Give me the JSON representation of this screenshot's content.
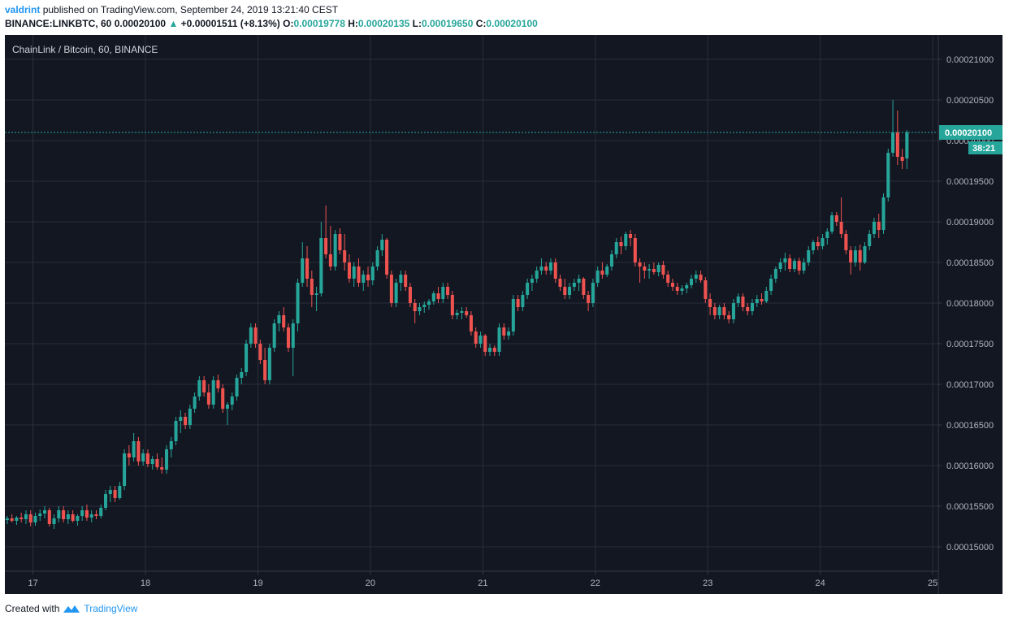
{
  "header": {
    "author": "valdrint",
    "published_text": "published on TradingView.com, September 24, 2019 13:21:40 CEST",
    "symbol": "BINANCE:LINKBTC, 60",
    "last": "0.00020100",
    "change": "+0.00001511 (+8.13%)",
    "o_label": "O:",
    "o_value": "0.00019778",
    "h_label": "H:",
    "h_value": "0.00020135",
    "l_label": "L:",
    "l_value": "0.00019650",
    "c_label": "C:",
    "c_value": "0.00020100"
  },
  "footer": {
    "created_with": "Created with",
    "brand": "TradingView"
  },
  "colors": {
    "up": "#26a69a",
    "down": "#ef5350",
    "background": "#131722",
    "grid": "#2a2e39",
    "price_line": "#26a69a"
  },
  "chart_data": {
    "type": "candlestick",
    "title": "ChainLink / Bitcoin, 60, BINANCE",
    "price_label": "0.00020100",
    "countdown": "38:21",
    "ylim": [
      0.000147,
      0.000213
    ],
    "y_ticks": [
      "0.00021000",
      "0.00020500",
      "0.00020000",
      "0.00019500",
      "0.00019000",
      "0.00018500",
      "0.00018000",
      "0.00017500",
      "0.00017000",
      "0.00016500",
      "0.00016000",
      "0.00015500",
      "0.00015000"
    ],
    "x_ticks": [
      "17",
      "18",
      "19",
      "20",
      "21",
      "22",
      "23",
      "24",
      "25"
    ],
    "x_tick_days": [
      17,
      18,
      19,
      20,
      21,
      22,
      23,
      24,
      25
    ],
    "xlim_days": [
      16.75,
      25.05
    ],
    "grid": true,
    "start_day": 16.75,
    "hours_per_candle": 1,
    "candles": [
      [
        0.0001533,
        0.0001538,
        0.0001528,
        0.0001535
      ],
      [
        0.0001535,
        0.000154,
        0.000153,
        0.0001532
      ],
      [
        0.0001532,
        0.0001538,
        0.0001527,
        0.0001536
      ],
      [
        0.0001536,
        0.0001542,
        0.000153,
        0.0001534
      ],
      [
        0.0001534,
        0.0001545,
        0.0001528,
        0.000154
      ],
      [
        0.000154,
        0.0001545,
        0.0001525,
        0.000153
      ],
      [
        0.000153,
        0.0001542,
        0.0001526,
        0.0001538
      ],
      [
        0.0001538,
        0.0001546,
        0.0001532,
        0.0001541
      ],
      [
        0.0001541,
        0.000155,
        0.0001535,
        0.0001545
      ],
      [
        0.0001545,
        0.0001548,
        0.0001525,
        0.0001528
      ],
      [
        0.0001528,
        0.000154,
        0.0001522,
        0.0001535
      ],
      [
        0.0001535,
        0.000155,
        0.000153,
        0.0001545
      ],
      [
        0.0001545,
        0.000155,
        0.000153,
        0.0001534
      ],
      [
        0.0001534,
        0.0001545,
        0.0001528,
        0.000154
      ],
      [
        0.000154,
        0.0001545,
        0.000153,
        0.0001532
      ],
      [
        0.0001532,
        0.000154,
        0.0001526,
        0.0001538
      ],
      [
        0.0001538,
        0.000155,
        0.0001532,
        0.0001545
      ],
      [
        0.0001545,
        0.0001552,
        0.0001532,
        0.0001536
      ],
      [
        0.0001536,
        0.0001545,
        0.000153,
        0.000154
      ],
      [
        0.000154,
        0.0001545,
        0.0001534,
        0.0001538
      ],
      [
        0.0001538,
        0.0001552,
        0.0001535,
        0.0001548
      ],
      [
        0.0001548,
        0.000157,
        0.0001545,
        0.0001565
      ],
      [
        0.0001565,
        0.0001575,
        0.0001555,
        0.000157
      ],
      [
        0.000157,
        0.0001575,
        0.0001555,
        0.000156
      ],
      [
        0.000156,
        0.000158,
        0.0001558,
        0.0001575
      ],
      [
        0.0001575,
        0.000162,
        0.000157,
        0.0001615
      ],
      [
        0.0001615,
        0.0001625,
        0.00016,
        0.000161
      ],
      [
        0.000161,
        0.000164,
        0.0001605,
        0.000163
      ],
      [
        0.000163,
        0.0001635,
        0.00016,
        0.0001605
      ],
      [
        0.0001605,
        0.000162,
        0.00016,
        0.0001615
      ],
      [
        0.0001615,
        0.000162,
        0.0001598,
        0.0001602
      ],
      [
        0.0001602,
        0.0001612,
        0.0001595,
        0.0001608
      ],
      [
        0.0001608,
        0.0001615,
        0.0001595,
        0.0001598
      ],
      [
        0.0001598,
        0.000161,
        0.000159,
        0.0001595
      ],
      [
        0.0001595,
        0.0001625,
        0.000159,
        0.000162
      ],
      [
        0.000162,
        0.0001635,
        0.000161,
        0.000163
      ],
      [
        0.000163,
        0.000166,
        0.0001625,
        0.0001655
      ],
      [
        0.0001655,
        0.0001668,
        0.000164,
        0.000166
      ],
      [
        0.000166,
        0.0001665,
        0.0001645,
        0.000165
      ],
      [
        0.000165,
        0.0001675,
        0.0001645,
        0.000167
      ],
      [
        0.000167,
        0.000169,
        0.0001665,
        0.0001685
      ],
      [
        0.0001685,
        0.000171,
        0.000168,
        0.0001705
      ],
      [
        0.0001705,
        0.000171,
        0.0001685,
        0.000169
      ],
      [
        0.000169,
        0.00017,
        0.000167,
        0.0001675
      ],
      [
        0.0001675,
        0.000171,
        0.000167,
        0.0001705
      ],
      [
        0.0001705,
        0.0001712,
        0.000169,
        0.0001695
      ],
      [
        0.0001695,
        0.00017,
        0.0001665,
        0.000167
      ],
      [
        0.000167,
        0.0001678,
        0.000165,
        0.0001675
      ],
      [
        0.0001675,
        0.000169,
        0.0001668,
        0.0001685
      ],
      [
        0.0001685,
        0.0001712,
        0.000168,
        0.0001708
      ],
      [
        0.0001708,
        0.000172,
        0.00017,
        0.0001715
      ],
      [
        0.0001715,
        0.0001755,
        0.000171,
        0.000175
      ],
      [
        0.000175,
        0.0001775,
        0.0001745,
        0.000177
      ],
      [
        0.000177,
        0.0001775,
        0.0001745,
        0.000175
      ],
      [
        0.000175,
        0.0001755,
        0.0001725,
        0.000173
      ],
      [
        0.000173,
        0.0001745,
        0.00017,
        0.0001705
      ],
      [
        0.0001705,
        0.000175,
        0.00017,
        0.0001745
      ],
      [
        0.0001745,
        0.000178,
        0.000174,
        0.0001775
      ],
      [
        0.0001775,
        0.000179,
        0.0001765,
        0.0001785
      ],
      [
        0.0001785,
        0.0001795,
        0.0001765,
        0.000177
      ],
      [
        0.000177,
        0.0001775,
        0.000174,
        0.0001745
      ],
      [
        0.0001745,
        0.000178,
        0.000171,
        0.0001775
      ],
      [
        0.0001775,
        0.000183,
        0.0001765,
        0.0001825
      ],
      [
        0.0001825,
        0.0001875,
        0.000182,
        0.0001855
      ],
      [
        0.0001855,
        0.000187,
        0.000182,
        0.000183
      ],
      [
        0.000183,
        0.000184,
        0.0001795,
        0.000181
      ],
      [
        0.000181,
        0.000182,
        0.000179,
        0.0001812
      ],
      [
        0.0001812,
        0.00019,
        0.0001808,
        0.000188
      ],
      [
        0.000188,
        0.000192,
        0.0001855,
        0.000186
      ],
      [
        0.000186,
        0.0001895,
        0.000184,
        0.0001845
      ],
      [
        0.0001845,
        0.000189,
        0.000184,
        0.0001885
      ],
      [
        0.0001885,
        0.0001892,
        0.000186,
        0.0001865
      ],
      [
        0.0001865,
        0.0001885,
        0.000184,
        0.000185
      ],
      [
        0.000185,
        0.000186,
        0.0001825,
        0.000183
      ],
      [
        0.000183,
        0.000185,
        0.000182,
        0.0001845
      ],
      [
        0.0001845,
        0.0001855,
        0.000182,
        0.0001825
      ],
      [
        0.0001825,
        0.000184,
        0.0001815,
        0.0001835
      ],
      [
        0.0001835,
        0.0001845,
        0.000182,
        0.0001828
      ],
      [
        0.0001828,
        0.000185,
        0.0001822,
        0.0001845
      ],
      [
        0.0001845,
        0.000187,
        0.000184,
        0.0001865
      ],
      [
        0.0001865,
        0.0001885,
        0.0001858,
        0.0001878
      ],
      [
        0.0001878,
        0.000188,
        0.000183,
        0.0001835
      ],
      [
        0.0001835,
        0.000184,
        0.0001795,
        0.00018
      ],
      [
        0.00018,
        0.000183,
        0.0001795,
        0.0001825
      ],
      [
        0.0001825,
        0.000184,
        0.0001815,
        0.0001835
      ],
      [
        0.0001835,
        0.000184,
        0.0001815,
        0.000182
      ],
      [
        0.000182,
        0.0001825,
        0.0001795,
        0.00018
      ],
      [
        0.00018,
        0.0001805,
        0.0001775,
        0.000179
      ],
      [
        0.000179,
        0.00018,
        0.0001785,
        0.0001795
      ],
      [
        0.0001795,
        0.0001802,
        0.0001788,
        0.0001798
      ],
      [
        0.0001798,
        0.0001805,
        0.0001792,
        0.0001802
      ],
      [
        0.0001802,
        0.0001815,
        0.0001798,
        0.0001812
      ],
      [
        0.0001812,
        0.000182,
        0.00018,
        0.0001805
      ],
      [
        0.0001805,
        0.0001825,
        0.00018,
        0.000182
      ],
      [
        0.000182,
        0.0001825,
        0.0001805,
        0.000181
      ],
      [
        0.000181,
        0.0001815,
        0.000178,
        0.0001785
      ],
      [
        0.0001785,
        0.0001792,
        0.000178,
        0.0001788
      ],
      [
        0.0001788,
        0.0001795,
        0.000178,
        0.000179
      ],
      [
        0.000179,
        0.0001795,
        0.0001782,
        0.0001785
      ],
      [
        0.0001785,
        0.000179,
        0.000176,
        0.0001765
      ],
      [
        0.0001765,
        0.000177,
        0.0001745,
        0.000175
      ],
      [
        0.000175,
        0.0001765,
        0.0001745,
        0.000176
      ],
      [
        0.000176,
        0.0001762,
        0.0001735,
        0.000174
      ],
      [
        0.000174,
        0.000175,
        0.0001735,
        0.0001745
      ],
      [
        0.0001745,
        0.0001748,
        0.0001735,
        0.000174
      ],
      [
        0.000174,
        0.0001775,
        0.0001735,
        0.000177
      ],
      [
        0.000177,
        0.0001775,
        0.0001755,
        0.000176
      ],
      [
        0.000176,
        0.000177,
        0.0001755,
        0.0001765
      ],
      [
        0.0001765,
        0.000181,
        0.000176,
        0.0001805
      ],
      [
        0.0001805,
        0.000181,
        0.000179,
        0.0001795
      ],
      [
        0.0001795,
        0.0001815,
        0.000179,
        0.000181
      ],
      [
        0.000181,
        0.000183,
        0.0001805,
        0.0001825
      ],
      [
        0.0001825,
        0.0001835,
        0.0001815,
        0.000183
      ],
      [
        0.000183,
        0.0001845,
        0.0001825,
        0.000184
      ],
      [
        0.000184,
        0.0001855,
        0.0001835,
        0.0001845
      ],
      [
        0.0001845,
        0.000185,
        0.0001835,
        0.000184
      ],
      [
        0.000184,
        0.0001855,
        0.0001835,
        0.000185
      ],
      [
        0.000185,
        0.0001855,
        0.0001825,
        0.000183
      ],
      [
        0.000183,
        0.0001835,
        0.0001815,
        0.000182
      ],
      [
        0.000182,
        0.000183,
        0.0001805,
        0.000181
      ],
      [
        0.000181,
        0.0001825,
        0.0001805,
        0.000182
      ],
      [
        0.000182,
        0.000183,
        0.0001815,
        0.0001825
      ],
      [
        0.0001825,
        0.0001835,
        0.0001815,
        0.000183
      ],
      [
        0.000183,
        0.0001832,
        0.0001805,
        0.000181
      ],
      [
        0.000181,
        0.0001815,
        0.000179,
        0.00018
      ],
      [
        0.00018,
        0.000183,
        0.0001795,
        0.0001825
      ],
      [
        0.0001825,
        0.0001845,
        0.000182,
        0.000184
      ],
      [
        0.000184,
        0.000185,
        0.000183,
        0.0001835
      ],
      [
        0.0001835,
        0.0001848,
        0.0001832,
        0.0001845
      ],
      [
        0.0001845,
        0.0001865,
        0.000184,
        0.000186
      ],
      [
        0.000186,
        0.000188,
        0.0001855,
        0.0001875
      ],
      [
        0.0001875,
        0.0001882,
        0.000186,
        0.000187
      ],
      [
        0.000187,
        0.0001888,
        0.0001865,
        0.0001885
      ],
      [
        0.0001885,
        0.000189,
        0.000187,
        0.000188
      ],
      [
        0.000188,
        0.0001885,
        0.0001845,
        0.000185
      ],
      [
        0.000185,
        0.0001855,
        0.0001825,
        0.0001845
      ],
      [
        0.0001845,
        0.000185,
        0.000183,
        0.000184
      ],
      [
        0.000184,
        0.0001848,
        0.000183,
        0.0001842
      ],
      [
        0.0001842,
        0.000185,
        0.0001835,
        0.0001838
      ],
      [
        0.0001838,
        0.000185,
        0.0001833,
        0.0001847
      ],
      [
        0.0001847,
        0.0001852,
        0.000183,
        0.0001835
      ],
      [
        0.0001835,
        0.000184,
        0.000182,
        0.0001825
      ],
      [
        0.0001825,
        0.000183,
        0.0001815,
        0.000182
      ],
      [
        0.000182,
        0.0001825,
        0.000181,
        0.0001815
      ],
      [
        0.0001815,
        0.0001822,
        0.000181,
        0.0001818
      ],
      [
        0.0001818,
        0.0001825,
        0.0001812,
        0.0001822
      ],
      [
        0.0001822,
        0.0001835,
        0.0001818,
        0.000183
      ],
      [
        0.000183,
        0.000184,
        0.0001825,
        0.0001835
      ],
      [
        0.0001835,
        0.000184,
        0.0001825,
        0.0001828
      ],
      [
        0.0001828,
        0.0001832,
        0.00018,
        0.0001805
      ],
      [
        0.0001805,
        0.0001812,
        0.0001785,
        0.0001795
      ],
      [
        0.0001795,
        0.00018,
        0.000178,
        0.0001785
      ],
      [
        0.0001785,
        0.0001798,
        0.000178,
        0.0001795
      ],
      [
        0.0001795,
        0.00018,
        0.000178,
        0.0001785
      ],
      [
        0.0001785,
        0.000179,
        0.0001775,
        0.000178
      ],
      [
        0.000178,
        0.0001805,
        0.0001775,
        0.00018
      ],
      [
        0.00018,
        0.0001812,
        0.0001795,
        0.0001808
      ],
      [
        0.0001808,
        0.0001812,
        0.000179,
        0.0001795
      ],
      [
        0.0001795,
        0.00018,
        0.0001785,
        0.000179
      ],
      [
        0.000179,
        0.0001805,
        0.0001785,
        0.00018
      ],
      [
        0.00018,
        0.000181,
        0.0001795,
        0.0001805
      ],
      [
        0.0001805,
        0.0001812,
        0.0001798,
        0.0001802
      ],
      [
        0.0001802,
        0.000182,
        0.00018,
        0.0001815
      ],
      [
        0.0001815,
        0.0001835,
        0.000181,
        0.000183
      ],
      [
        0.000183,
        0.0001845,
        0.0001825,
        0.0001842
      ],
      [
        0.0001842,
        0.0001855,
        0.0001838,
        0.000185
      ],
      [
        0.000185,
        0.0001862,
        0.000184,
        0.0001855
      ],
      [
        0.0001855,
        0.000186,
        0.0001838,
        0.0001842
      ],
      [
        0.0001842,
        0.0001855,
        0.0001838,
        0.0001852
      ],
      [
        0.0001852,
        0.0001856,
        0.0001835,
        0.000184
      ],
      [
        0.000184,
        0.0001855,
        0.0001836,
        0.000185
      ],
      [
        0.000185,
        0.000187,
        0.0001846,
        0.0001865
      ],
      [
        0.0001865,
        0.0001878,
        0.000186,
        0.0001875
      ],
      [
        0.0001875,
        0.0001882,
        0.0001865,
        0.000187
      ],
      [
        0.000187,
        0.0001885,
        0.0001866,
        0.000188
      ],
      [
        0.000188,
        0.0001892,
        0.0001872,
        0.0001888
      ],
      [
        0.0001888,
        0.0001912,
        0.0001885,
        0.0001908
      ],
      [
        0.0001908,
        0.0001912,
        0.0001895,
        0.00019
      ],
      [
        0.00019,
        0.000193,
        0.000188,
        0.0001885
      ],
      [
        0.0001885,
        0.000189,
        0.000186,
        0.0001865
      ],
      [
        0.0001865,
        0.000187,
        0.0001835,
        0.000185
      ],
      [
        0.000185,
        0.000187,
        0.0001845,
        0.0001865
      ],
      [
        0.0001865,
        0.0001872,
        0.000184,
        0.000185
      ],
      [
        0.000185,
        0.0001875,
        0.0001848,
        0.000187
      ],
      [
        0.000187,
        0.000189,
        0.0001865,
        0.0001885
      ],
      [
        0.0001885,
        0.0001905,
        0.000188,
        0.00019
      ],
      [
        0.00019,
        0.000191,
        0.000188,
        0.000189
      ],
      [
        0.000189,
        0.0001935,
        0.0001885,
        0.000193
      ],
      [
        0.000193,
        0.000199,
        0.0001925,
        0.0001985
      ],
      [
        0.0001985,
        0.000205,
        0.000198,
        0.000201
      ],
      [
        0.000201,
        0.0002037,
        0.000197,
        0.000198
      ],
      [
        0.000198,
        0.000199,
        0.0001965,
        0.0001975
      ],
      [
        0.0001978,
        0.0002013,
        0.0001965,
        0.000201
      ]
    ]
  }
}
